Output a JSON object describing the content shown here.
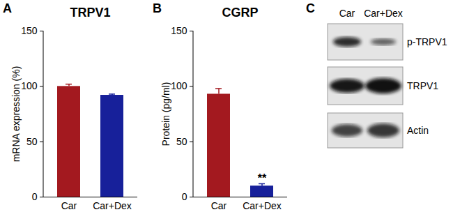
{
  "chart_data": [
    {
      "type": "bar",
      "panel": "A",
      "title": "TRPV1",
      "y_label": "mRNA expression (%)",
      "categories": [
        "Car",
        "Car+Dex"
      ],
      "values": [
        100,
        92
      ],
      "errors": [
        2,
        1
      ],
      "colors": [
        "#a3191f",
        "#17209a"
      ],
      "ylim": [
        0,
        150
      ],
      "yticks": [
        0,
        50,
        100,
        150
      ]
    },
    {
      "type": "bar",
      "panel": "B",
      "title": "CGRP",
      "y_label": "Protein (pg/ml)",
      "categories": [
        "Car",
        "Car+Dex"
      ],
      "values": [
        93,
        10
      ],
      "errors": [
        5,
        2
      ],
      "colors": [
        "#a3191f",
        "#17209a"
      ],
      "ylim": [
        0,
        150
      ],
      "yticks": [
        0,
        50,
        100,
        150
      ],
      "annotations": [
        {
          "category": "Car+Dex",
          "text": "**"
        }
      ]
    }
  ],
  "blot": {
    "panel": "C",
    "lanes": [
      "Car",
      "Car+Dex"
    ],
    "bands": [
      "p-TRPV1",
      "TRPV1",
      "Actin"
    ]
  }
}
